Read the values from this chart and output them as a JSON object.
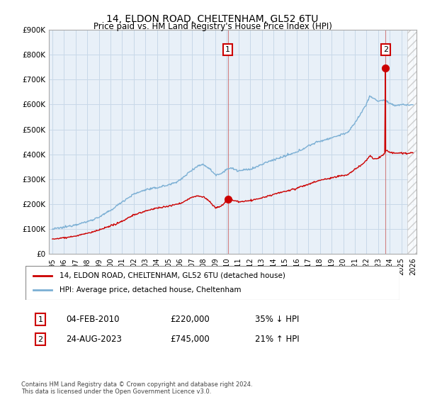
{
  "title": "14, ELDON ROAD, CHELTENHAM, GL52 6TU",
  "subtitle": "Price paid vs. HM Land Registry's House Price Index (HPI)",
  "ylim": [
    0,
    900000
  ],
  "yticks": [
    0,
    100000,
    200000,
    300000,
    400000,
    500000,
    600000,
    700000,
    800000,
    900000
  ],
  "xlim_start": 1994.7,
  "xlim_end": 2026.3,
  "marker1_x": 2010.09,
  "marker1_y": 220000,
  "marker2_x": 2023.64,
  "marker2_y": 745000,
  "line1_color": "#cc0000",
  "line2_color": "#7bafd4",
  "vline_color": "#cc6666",
  "grid_color": "#c8d8e8",
  "bg_color": "#e8f0f8",
  "legend_line1": "14, ELDON ROAD, CHELTENHAM, GL52 6TU (detached house)",
  "legend_line2": "HPI: Average price, detached house, Cheltenham",
  "marker1_date": "04-FEB-2010",
  "marker1_price": "£220,000",
  "marker1_hpi": "35% ↓ HPI",
  "marker2_date": "24-AUG-2023",
  "marker2_price": "£745,000",
  "marker2_hpi": "21% ↑ HPI",
  "footnote": "Contains HM Land Registry data © Crown copyright and database right 2024.\nThis data is licensed under the Open Government Licence v3.0."
}
